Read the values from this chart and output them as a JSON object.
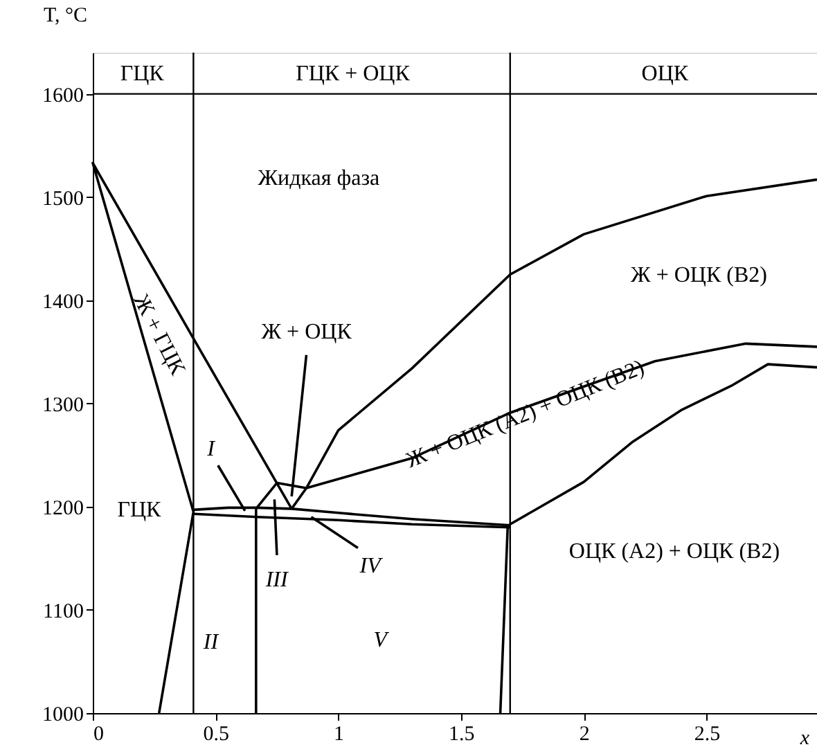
{
  "chart_data": {
    "type": "line",
    "xlabel": "x",
    "ylabel": "T, °C",
    "xlim": [
      0,
      2.95
    ],
    "xticks": [
      0,
      0.5,
      1,
      1.5,
      2,
      2.5
    ],
    "ylim": [
      1000,
      1640
    ],
    "yticks": [
      1000,
      1100,
      1200,
      1300,
      1400,
      1500,
      1600
    ],
    "grid": false,
    "marker": "none",
    "line_style": "solid",
    "series": [
      {
        "color": "#000000",
        "x": [
          0.27,
          0.41,
          0,
          0.41,
          0.81
        ],
        "values": [
          1000,
          1195,
          1533,
          1363,
          1198
        ]
      },
      {
        "color": "#000000",
        "x": [
          0.41,
          0.55,
          0.67,
          0.81,
          1.0,
          1.3,
          1.7
        ],
        "values": [
          1197,
          1199,
          1199,
          1198,
          1194,
          1188,
          1182
        ]
      },
      {
        "color": "#000000",
        "x": [
          0.41,
          0.67,
          1.0,
          1.3,
          1.7
        ],
        "values": [
          1193,
          1190,
          1187,
          1183,
          1180
        ]
      },
      {
        "color": "#000000",
        "x": [
          0.665,
          0.665,
          0.75,
          0.87,
          1.3,
          1.7,
          2.29,
          2.66,
          2.95
        ],
        "values": [
          1000,
          1198,
          1223,
          1218,
          1247,
          1291,
          1341,
          1358,
          1355
        ]
      },
      {
        "color": "#000000",
        "x": [
          0.81,
          0.87,
          1.0,
          1.3,
          1.7,
          2.0,
          2.5,
          2.95
        ],
        "values": [
          1198,
          1218,
          1274,
          1334,
          1425,
          1464,
          1501,
          1517
        ]
      },
      {
        "color": "#000000",
        "x": [
          1.66,
          1.69,
          1.7,
          2.0,
          2.2,
          2.4,
          2.6,
          2.75,
          2.95
        ],
        "values": [
          1000,
          1180,
          1183,
          1224,
          1263,
          1294,
          1317,
          1338,
          1335
        ]
      },
      {
        "color": "#000000",
        "x": [
          0.87,
          0.81
        ],
        "values": [
          1347,
          1210
        ]
      },
      {
        "color": "#000000",
        "x": [
          0.51,
          0.62
        ],
        "values": [
          1240,
          1196
        ]
      },
      {
        "color": "#000000",
        "x": [
          0.75,
          0.74
        ],
        "values": [
          1153,
          1207
        ]
      },
      {
        "color": "#000000",
        "x": [
          1.08,
          0.89
        ],
        "values": [
          1160,
          1190
        ]
      }
    ],
    "ref_lines": [
      {
        "axis": "y",
        "value": 1600,
        "color": "#000000"
      },
      {
        "axis": "x",
        "value": 0.41,
        "color": "#000000"
      },
      {
        "axis": "x",
        "value": 1.7,
        "color": "#000000"
      }
    ],
    "annotations": [
      "Жидкая фаза",
      "Ж + ГЦК",
      "Ж + ОЦК",
      "Ж + ОЦК (B2)",
      "Ж + ОЦК (A2) + ОЦК (B2)",
      "ОЦК (A2) + ОЦК (B2)",
      "ГЦК",
      "I",
      "II",
      "III",
      "IV",
      "V",
      "ГЦК",
      "ГЦК + ОЦК",
      "ОЦК"
    ]
  }
}
